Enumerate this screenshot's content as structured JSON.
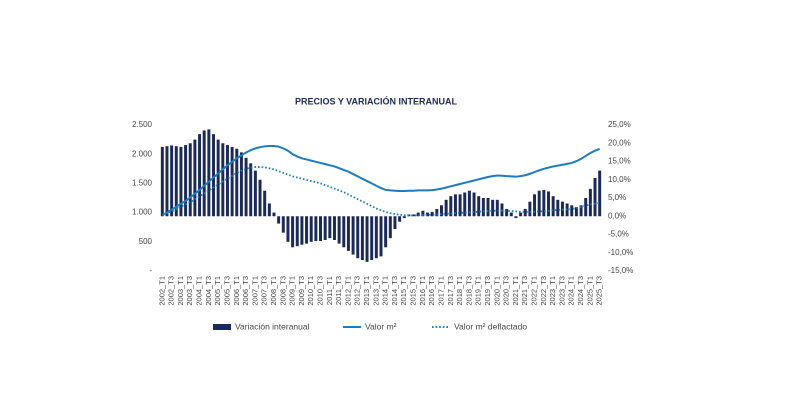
{
  "chart_data": {
    "type": "bar-line",
    "title": "PRECIOS Y VARIACIÓN INTERANUAL",
    "categories": [
      "2002_T1",
      null,
      "2002_T3",
      null,
      "2003_T1",
      null,
      "2003_T3",
      null,
      "2004_T1",
      null,
      "2004_T3",
      null,
      "2005_T1",
      null,
      "2005_T3",
      null,
      "2006_T1",
      null,
      "2006_T3",
      null,
      "2007_T1",
      null,
      "2007_T3",
      null,
      "2008_T1",
      null,
      "2008_T3",
      null,
      "2009_T1",
      null,
      "2009_T3",
      null,
      "2010_T1",
      null,
      "2010_T3",
      null,
      "2011_T1",
      null,
      "2011_T3",
      null,
      "2012_T1",
      null,
      "2012_T3",
      null,
      "2013_T1",
      null,
      "2013_T3",
      null,
      "2014_T1",
      null,
      "2014_T3",
      null,
      "2015_T1",
      null,
      "2015_T3",
      null,
      "2016_T1",
      null,
      "2016_T3",
      null,
      "2017_T1",
      null,
      "2017_T3",
      null,
      "2018_T1",
      null,
      "2018_T3",
      null,
      "2019_T1",
      null,
      "2019_T3",
      null,
      "2020_T1",
      null,
      "2020_T3",
      null,
      "2021_T1",
      null,
      "2021_T3",
      null,
      "2022_T1",
      null,
      "2022_T3",
      null,
      "2023_T1",
      null,
      "2023_T3",
      null,
      "2024_T1",
      null,
      "2024_T3",
      null,
      "2025_T1",
      null,
      "2025_T3"
    ],
    "series": [
      {
        "name": "Variación interanual",
        "type": "bar",
        "axis": "y2",
        "color": "#1b2a5c",
        "values": [
          19,
          19.2,
          19.4,
          19.2,
          19,
          19.5,
          20,
          21,
          22.5,
          23.5,
          23.8,
          22.5,
          21,
          20,
          19.5,
          19,
          18.5,
          17.5,
          16,
          14.5,
          12.5,
          10,
          7,
          3.5,
          1,
          -2,
          -4.5,
          -7,
          -8.5,
          -8.2,
          -7.8,
          -7.5,
          -7,
          -6.8,
          -6.8,
          -6.5,
          -6,
          -6.5,
          -7.5,
          -8.5,
          -9.5,
          -10.5,
          -11.5,
          -12,
          -12.5,
          -12,
          -11.5,
          -11,
          -8.5,
          -6,
          -3.5,
          -1.5,
          -0.5,
          0.5,
          0.5,
          1,
          1.5,
          1,
          1.2,
          2,
          3,
          4.5,
          5.5,
          6,
          6,
          6.5,
          7,
          6.5,
          5.5,
          5,
          5,
          4.5,
          4.5,
          3.5,
          2,
          1,
          -0.5,
          1,
          2,
          4,
          6,
          7,
          7.2,
          6.8,
          5.5,
          4.5,
          4,
          3.5,
          3,
          2.5,
          3,
          5,
          7.5,
          10.5,
          12.5
        ]
      },
      {
        "name": "Valor m²",
        "type": "line",
        "color": "#1f7bbf",
        "values": [
          960,
          1000,
          1050,
          1100,
          1150,
          1200,
          1260,
          1320,
          1390,
          1460,
          1530,
          1600,
          1670,
          1740,
          1810,
          1870,
          1930,
          1980,
          2030,
          2070,
          2100,
          2120,
          2135,
          2140,
          2140,
          2130,
          2100,
          2060,
          2000,
          1960,
          1930,
          1910,
          1890,
          1870,
          1850,
          1830,
          1810,
          1790,
          1760,
          1730,
          1700,
          1660,
          1620,
          1580,
          1540,
          1500,
          1460,
          1420,
          1390,
          1380,
          1375,
          1370,
          1370,
          1375,
          1375,
          1380,
          1380,
          1380,
          1385,
          1395,
          1410,
          1430,
          1450,
          1470,
          1490,
          1510,
          1530,
          1550,
          1570,
          1590,
          1610,
          1625,
          1635,
          1630,
          1625,
          1620,
          1615,
          1625,
          1640,
          1665,
          1695,
          1725,
          1750,
          1770,
          1790,
          1805,
          1820,
          1835,
          1850,
          1880,
          1920,
          1970,
          2020,
          2060,
          2090
        ]
      },
      {
        "name": "Valor m² deflactado",
        "type": "dotted-line",
        "color": "#1f7bbf",
        "values": [
          960,
          990,
          1020,
          1060,
          1100,
          1140,
          1180,
          1230,
          1280,
          1330,
          1380,
          1430,
          1480,
          1530,
          1580,
          1630,
          1680,
          1720,
          1750,
          1770,
          1780,
          1780,
          1775,
          1760,
          1740,
          1710,
          1680,
          1650,
          1620,
          1600,
          1580,
          1560,
          1540,
          1520,
          1500,
          1470,
          1440,
          1410,
          1380,
          1350,
          1310,
          1270,
          1230,
          1190,
          1150,
          1110,
          1070,
          1040,
          1010,
          990,
          975,
          965,
          955,
          950,
          950,
          955,
          960,
          960,
          965,
          970,
          975,
          980,
          985,
          990,
          995,
          1000,
          1005,
          1010,
          1015,
          1020,
          1025,
          1030,
          1035,
          1035,
          1030,
          1025,
          1020,
          1015,
          1010,
          1010,
          1015,
          1020,
          1025,
          1030,
          1040,
          1045,
          1050,
          1055,
          1060,
          1075,
          1095,
          1120,
          1140,
          1155,
          1165
        ]
      }
    ],
    "ylim": [
      0,
      2500
    ],
    "yticks": [
      {
        "value": 0,
        "label": "-"
      },
      500,
      {
        "value": 1000,
        "label": "1.000"
      },
      {
        "value": 1500,
        "label": "1.500"
      },
      {
        "value": 2000,
        "label": "2.000"
      },
      {
        "value": 2500,
        "label": "2.500"
      }
    ],
    "y2lim": [
      -15,
      25
    ],
    "y2ticks": [
      {
        "value": -15,
        "label": "-15,0%"
      },
      {
        "value": -10,
        "label": "-10,0%"
      },
      {
        "value": -5,
        "label": "-5,0%"
      },
      {
        "value": 0,
        "label": "0,0%"
      },
      {
        "value": 5,
        "label": "5,0%"
      },
      {
        "value": 10,
        "label": "10,0%"
      },
      {
        "value": 15,
        "label": "15,0%"
      },
      {
        "value": 20,
        "label": "20,0%"
      },
      {
        "value": 25,
        "label": "25,0%"
      }
    ],
    "legend": "bottom"
  }
}
